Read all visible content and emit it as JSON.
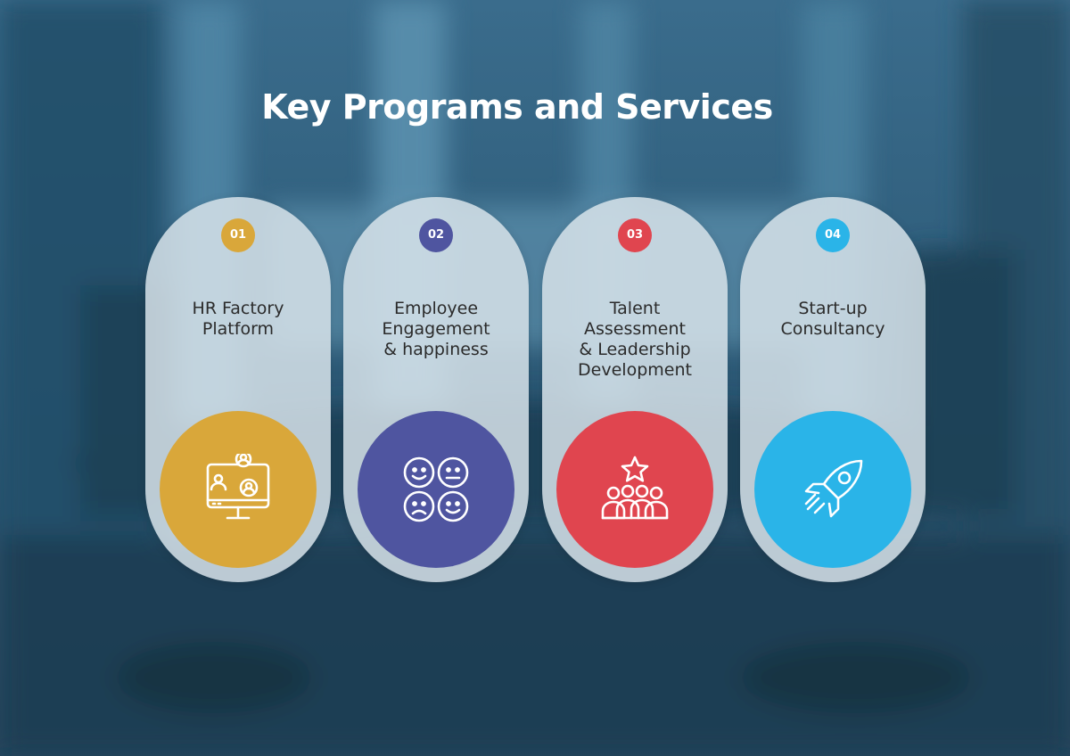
{
  "title": "Key Programs and Services",
  "cards": [
    {
      "number": "01",
      "label": "HR Factory\nPlatform",
      "color": "#d9a73a",
      "icon": "video-conference-icon"
    },
    {
      "number": "02",
      "label": "Employee\nEngagement\n& happiness",
      "color": "#4f55a0",
      "icon": "emotions-faces-icon"
    },
    {
      "number": "03",
      "label": "Talent\nAssessment\n& Leadership\nDevelopment",
      "color": "#e0454f",
      "icon": "team-star-icon"
    },
    {
      "number": "04",
      "label": "Start-up\nConsultancy",
      "color": "#2ab4e8",
      "icon": "rocket-icon"
    }
  ]
}
